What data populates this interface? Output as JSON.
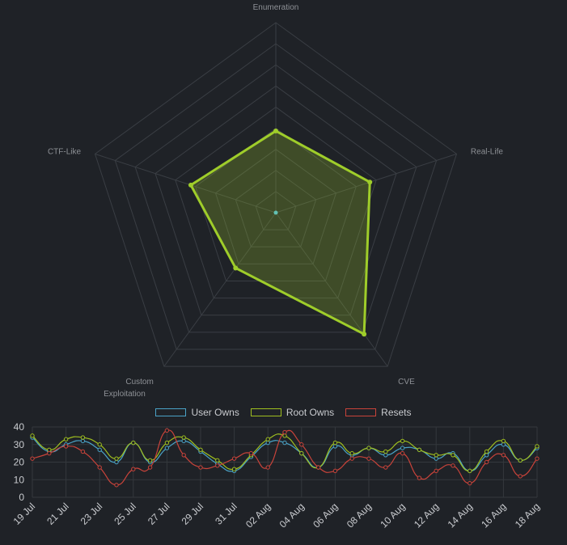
{
  "chart_data": [
    {
      "type": "radar",
      "axes": [
        "Enumeration",
        "Real-Life",
        "CVE",
        "Custom Exploitation",
        "CTF-Like"
      ],
      "axis_label_lines": [
        [
          "Enumeration"
        ],
        [
          "Real-Life"
        ],
        [
          "CVE"
        ],
        [
          "Custom",
          "Exploitation"
        ],
        [
          "CTF-Like"
        ]
      ],
      "rmax": 10,
      "rings": 9,
      "values": [
        4.3,
        5.2,
        7.9,
        3.6,
        4.7
      ],
      "colors": {
        "line": "#9fcd2a",
        "fill": "rgba(159,205,42,0.25)",
        "grid": "#3a3e44",
        "label": "#8e9196",
        "center": "#62c1b4"
      }
    },
    {
      "type": "line",
      "x": [
        "19 Jul",
        "20 Jul",
        "21 Jul",
        "22 Jul",
        "23 Jul",
        "24 Jul",
        "25 Jul",
        "26 Jul",
        "27 Jul",
        "28 Jul",
        "29 Jul",
        "30 Jul",
        "31 Jul",
        "01 Aug",
        "02 Aug",
        "03 Aug",
        "04 Aug",
        "05 Aug",
        "06 Aug",
        "07 Aug",
        "08 Aug",
        "09 Aug",
        "10 Aug",
        "11 Aug",
        "12 Aug",
        "13 Aug",
        "14 Aug",
        "15 Aug",
        "16 Aug",
        "17 Aug",
        "18 Aug"
      ],
      "tick_labels": [
        "19 Jul",
        "21 Jul",
        "23 Jul",
        "25 Jul",
        "27 Jul",
        "29 Jul",
        "31 Jul",
        "02 Aug",
        "04 Aug",
        "06 Aug",
        "08 Aug",
        "10 Aug",
        "12 Aug",
        "14 Aug",
        "16 Aug",
        "18 Aug"
      ],
      "y_ticks": [
        0,
        10,
        20,
        30,
        40
      ],
      "ylim": [
        0,
        40
      ],
      "series": [
        {
          "name": "User Owns",
          "color": "#4aa3c7",
          "values": [
            34,
            26,
            30,
            32,
            27,
            20,
            31,
            20,
            28,
            32,
            26,
            19,
            15,
            23,
            31,
            31,
            25,
            17,
            29,
            24,
            28,
            24,
            28,
            27,
            22,
            25,
            15,
            24,
            30,
            21,
            28
          ]
        },
        {
          "name": "Root Owns",
          "color": "#9fbf1f",
          "values": [
            35,
            27,
            33,
            34,
            30,
            22,
            31,
            21,
            31,
            34,
            27,
            21,
            16,
            24,
            33,
            35,
            25,
            17,
            31,
            25,
            28,
            26,
            32,
            27,
            24,
            24,
            15,
            26,
            32,
            21,
            29
          ]
        },
        {
          "name": "Resets",
          "color": "#c9433a",
          "values": [
            22,
            25,
            29,
            26,
            17,
            7,
            16,
            17,
            38,
            24,
            17,
            18,
            22,
            25,
            17,
            37,
            30,
            17,
            15,
            22,
            22,
            17,
            25,
            11,
            15,
            18,
            8,
            20,
            24,
            12,
            22
          ]
        }
      ]
    }
  ]
}
